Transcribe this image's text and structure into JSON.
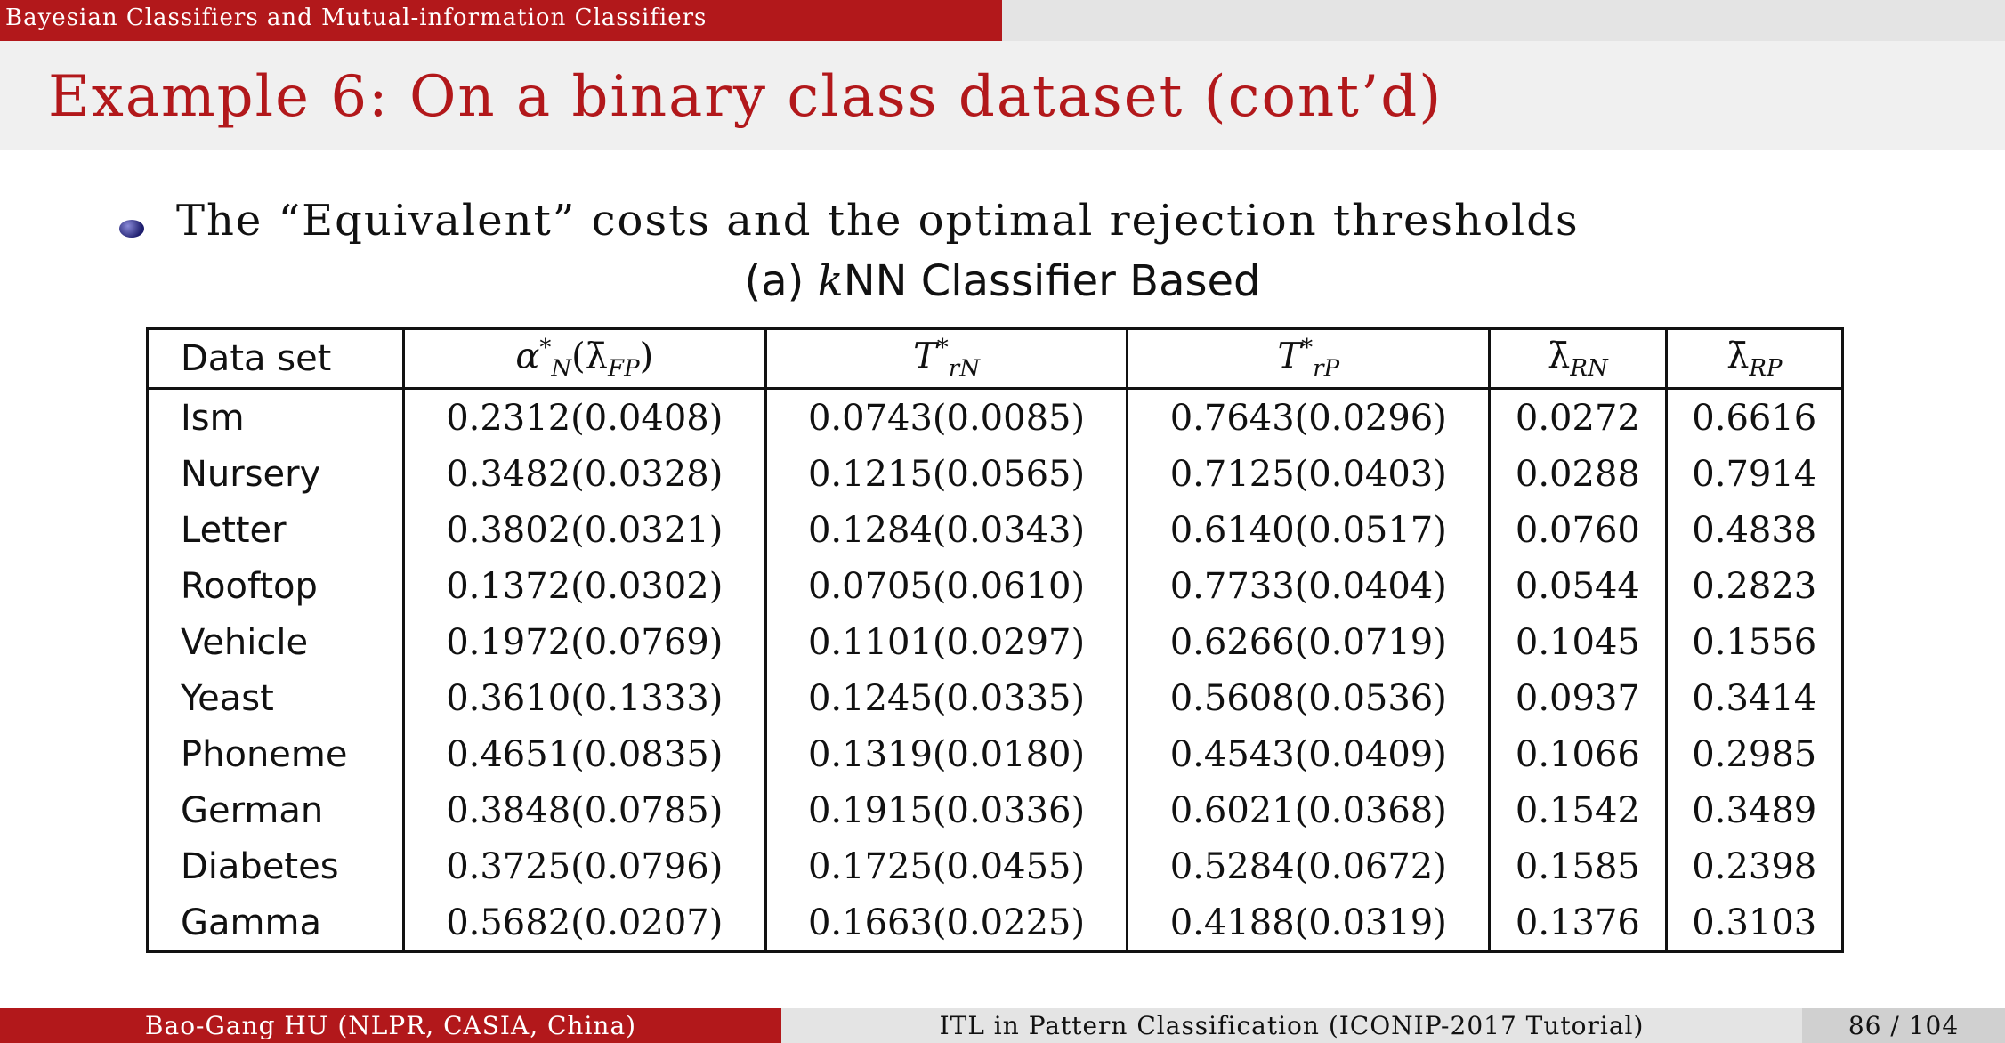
{
  "header": {
    "section": "Bayesian Classifiers and Mutual-information Classifiers",
    "title": "Example 6: On a binary class dataset (cont’d)"
  },
  "bullet": "The “Equivalent” costs and the optimal rejection thresholds",
  "caption": {
    "prefix": "(a) ",
    "k": "k",
    "rest": "NN Classifier Based"
  },
  "table": {
    "columns": [
      "Data set",
      "α*N(λ̄FP)",
      "T*rN",
      "T*rP",
      "λ̄RN",
      "λ̄RP"
    ],
    "rows": [
      [
        "Ism",
        "0.2312(0.0408)",
        "0.0743(0.0085)",
        "0.7643(0.0296)",
        "0.0272",
        "0.6616"
      ],
      [
        "Nursery",
        "0.3482(0.0328)",
        "0.1215(0.0565)",
        "0.7125(0.0403)",
        "0.0288",
        "0.7914"
      ],
      [
        "Letter",
        "0.3802(0.0321)",
        "0.1284(0.0343)",
        "0.6140(0.0517)",
        "0.0760",
        "0.4838"
      ],
      [
        "Rooftop",
        "0.1372(0.0302)",
        "0.0705(0.0610)",
        "0.7733(0.0404)",
        "0.0544",
        "0.2823"
      ],
      [
        "Vehicle",
        "0.1972(0.0769)",
        "0.1101(0.0297)",
        "0.6266(0.0719)",
        "0.1045",
        "0.1556"
      ],
      [
        "Yeast",
        "0.3610(0.1333)",
        "0.1245(0.0335)",
        "0.5608(0.0536)",
        "0.0937",
        "0.3414"
      ],
      [
        "Phoneme",
        "0.4651(0.0835)",
        "0.1319(0.0180)",
        "0.4543(0.0409)",
        "0.1066",
        "0.2985"
      ],
      [
        "German",
        "0.3848(0.0785)",
        "0.1915(0.0336)",
        "0.6021(0.0368)",
        "0.1542",
        "0.3489"
      ],
      [
        "Diabetes",
        "0.3725(0.0796)",
        "0.1725(0.0455)",
        "0.5284(0.0672)",
        "0.1585",
        "0.2398"
      ],
      [
        "Gamma",
        "0.5682(0.0207)",
        "0.1663(0.0225)",
        "0.4188(0.0319)",
        "0.1376",
        "0.3103"
      ]
    ]
  },
  "footer": {
    "author": "Bao-Gang HU (NLPR, CASIA, China)",
    "talk": "ITL in Pattern Classification (ICONIP-2017 Tutorial)",
    "page": "86 / 104"
  },
  "colors": {
    "accent": "#b2181b",
    "bar_gray": "#e4e4e4",
    "title_bg": "#f0f0f0"
  }
}
